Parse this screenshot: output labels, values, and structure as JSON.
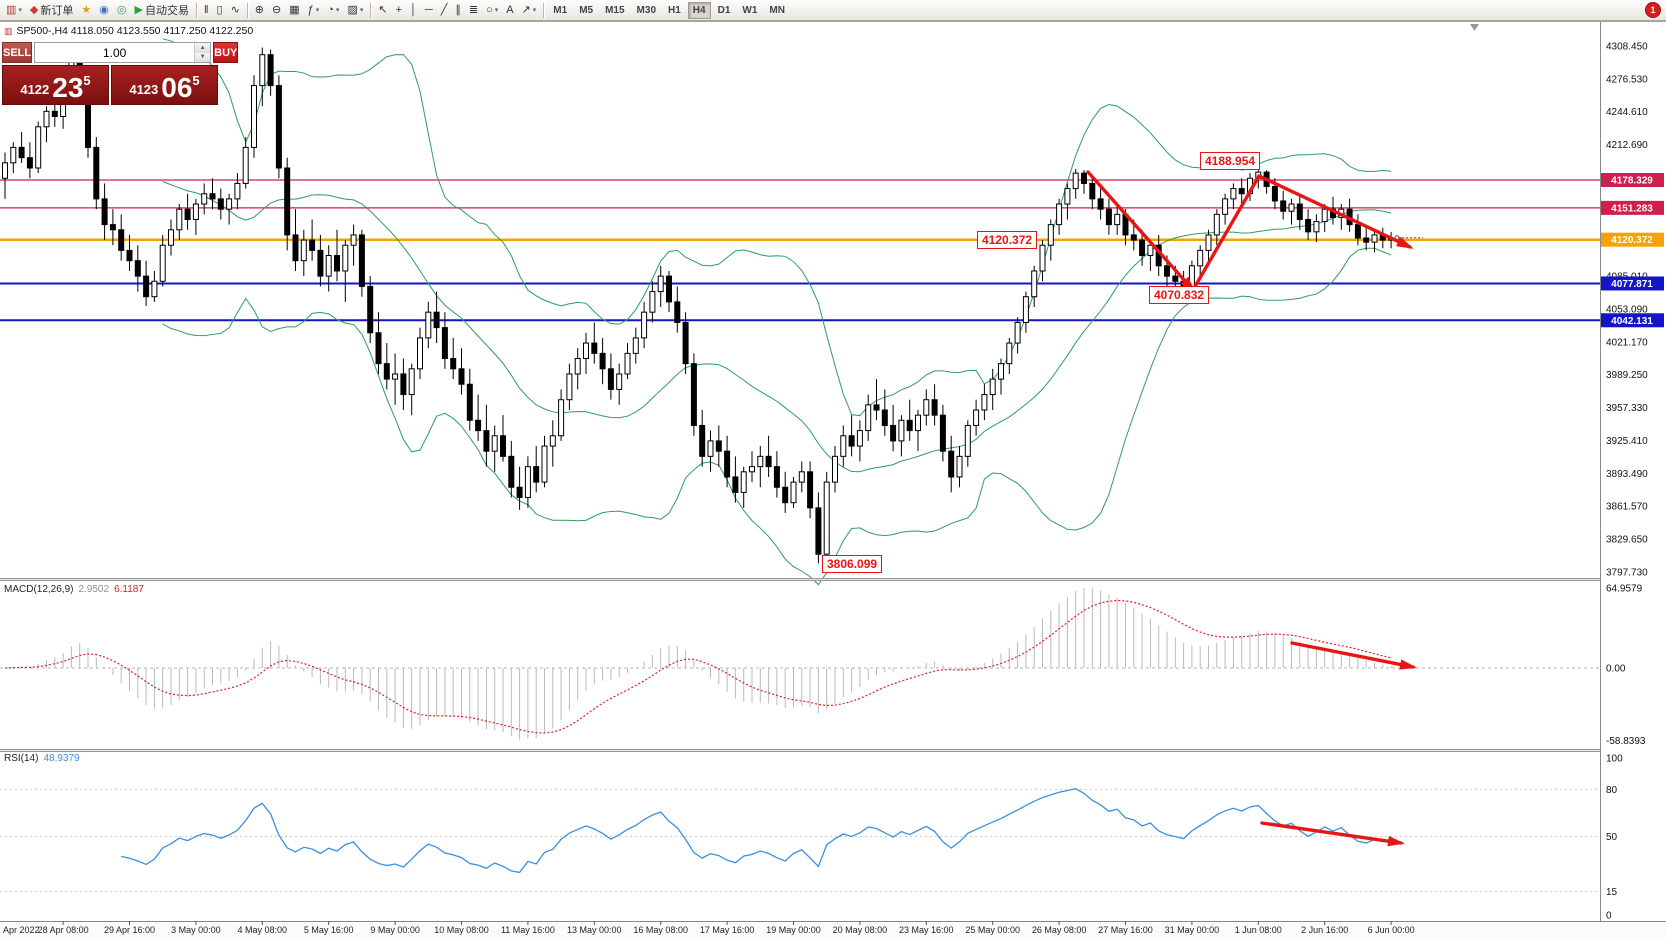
{
  "toolbar": {
    "buttons": [
      {
        "name": "new-chart-button",
        "glyph": "▥",
        "color": "#b0342c",
        "dropdown": true
      },
      {
        "name": "new-order-button",
        "glyph": "◆",
        "color": "#cf3a3a",
        "label": "新订单"
      },
      {
        "name": "favorites-button",
        "glyph": "★",
        "color": "#d9a21b"
      },
      {
        "name": "market-watch-button",
        "glyph": "◉",
        "color": "#3f6fbf"
      },
      {
        "name": "navigator-button",
        "glyph": "◎",
        "color": "#3f9e53"
      },
      {
        "name": "autotrading-button",
        "glyph": "▶",
        "color": "#2fa33a",
        "label": "自动交易"
      },
      {
        "sep": true
      },
      {
        "name": "bar-chart-button",
        "glyph": "‖"
      },
      {
        "name": "candlestick-chart-button",
        "glyph": "▯"
      },
      {
        "name": "line-chart-button",
        "glyph": "∿"
      },
      {
        "sep": true
      },
      {
        "name": "zoom-in-button",
        "glyph": "⊕"
      },
      {
        "name": "zoom-out-button",
        "glyph": "⊖"
      },
      {
        "name": "tile-windows-button",
        "glyph": "▦"
      },
      {
        "name": "indicators-button",
        "glyph": "ƒ",
        "dropdown": true
      },
      {
        "name": "periods-button",
        "glyph": "◔",
        "dropdown": true
      },
      {
        "name": "templates-button",
        "glyph": "▨",
        "dropdown": true
      },
      {
        "sep": true
      },
      {
        "name": "cursor-button",
        "glyph": "↖"
      },
      {
        "name": "crosshair-button",
        "glyph": "+"
      },
      {
        "name": "vertical-line-button",
        "glyph": "│"
      },
      {
        "name": "horizontal-line-button",
        "glyph": "─"
      },
      {
        "name": "trendline-button",
        "glyph": "╱"
      },
      {
        "name": "channel-button",
        "glyph": "∥"
      },
      {
        "name": "fibonacci-button",
        "glyph": "≣"
      },
      {
        "name": "shapes-button",
        "glyph": "○",
        "dropdown": true
      },
      {
        "name": "text-button",
        "glyph": "A"
      },
      {
        "name": "arrow-tools-button",
        "glyph": "↗",
        "dropdown": true
      },
      {
        "sep": true
      }
    ],
    "timeframes": [
      "M1",
      "M5",
      "M15",
      "M30",
      "H1",
      "H4",
      "D1",
      "W1",
      "MN"
    ],
    "active_timeframe": "H4",
    "notification_badge": "1"
  },
  "trade_panel": {
    "sell_label": "SELL",
    "buy_label": "BUY",
    "volume": "1.00",
    "sell_base": "4122",
    "sell_pips": "23",
    "sell_sup": "5",
    "buy_base": "4123",
    "buy_pips": "06",
    "buy_sup": "5"
  },
  "macd_panel": {
    "name": "MACD(12,26,9)",
    "value_main": "2.9502",
    "value_signal": "6.1187"
  },
  "rsi_panel": {
    "name": "RSI(14)",
    "value": "48.9379"
  },
  "chart_data": {
    "type": "candlestick",
    "symbol": "SP500-",
    "timeframe": "H4",
    "header_line": "SP500-,H4  4118.050 4123.550 4117.250 4122.250",
    "ohlc_current": {
      "open": 4118.05,
      "high": 4123.55,
      "low": 4117.25,
      "close": 4122.25
    },
    "ylim": [
      3797.73,
      4308.45
    ],
    "price_scale_labels": [
      "4308.450",
      "4276.530",
      "4244.610",
      "4212.690",
      "4180.770",
      "4148.850",
      "4116.930",
      "4085.010",
      "4053.090",
      "4021.170",
      "3989.250",
      "3957.330",
      "3925.410",
      "3893.490",
      "3861.570",
      "3829.650",
      "3797.730"
    ],
    "x_labels": [
      "Apr 2022",
      "28 Apr 08:00",
      "29 Apr 16:00",
      "3 May 00:00",
      "4 May 08:00",
      "5 May 16:00",
      "9 May 00:00",
      "10 May 08:00",
      "11 May 16:00",
      "13 May 00:00",
      "16 May 08:00",
      "17 May 16:00",
      "19 May 00:00",
      "20 May 08:00",
      "23 May 16:00",
      "25 May 00:00",
      "26 May 08:00",
      "27 May 16:00",
      "31 May 00:00",
      "1 Jun 08:00",
      "2 Jun 16:00",
      "6 Jun 00:00"
    ],
    "hlines": [
      {
        "label": "4178.329",
        "price": 4178.329,
        "color": "#cf1f4e",
        "width": 1.2
      },
      {
        "label": "4151.283",
        "price": 4151.283,
        "color": "#cf1f4e",
        "width": 1.2
      },
      {
        "label": "4120.372",
        "price": 4120.372,
        "color": "#f5a300",
        "width": 2.5
      },
      {
        "label": "4077.871",
        "price": 4077.871,
        "color": "#1414c8",
        "width": 2
      },
      {
        "label": "4042.131",
        "price": 4042.131,
        "color": "#1414c8",
        "width": 2
      }
    ],
    "annotations": [
      {
        "text": "4188.954"
      },
      {
        "text": "4120.372"
      },
      {
        "text": "4070.832"
      },
      {
        "text": "3806.099"
      }
    ],
    "indicators": {
      "bollinger": {
        "period": 20,
        "deviation": 2,
        "color": "#2e9e5b"
      },
      "macd": {
        "fast": 12,
        "slow": 26,
        "signal": 9,
        "current_main": 2.9502,
        "current_signal": 6.1187,
        "scale_labels": [
          "64.9579",
          "0.00",
          "-58.8393"
        ],
        "scale_values": [
          64.9579,
          0,
          -58.8393
        ]
      },
      "rsi": {
        "period": 14,
        "current": 48.9379,
        "scale_labels": [
          "100",
          "80",
          "50",
          "15",
          "0"
        ],
        "scale_values": [
          100,
          80,
          50,
          15,
          0
        ],
        "levels": [
          80,
          50,
          15
        ]
      }
    },
    "candles_ohlc": [
      [
        4180,
        4205,
        4160,
        4195
      ],
      [
        4195,
        4215,
        4185,
        4210
      ],
      [
        4210,
        4225,
        4195,
        4200
      ],
      [
        4200,
        4215,
        4180,
        4190
      ],
      [
        4190,
        4235,
        4185,
        4230
      ],
      [
        4230,
        4250,
        4215,
        4245
      ],
      [
        4245,
        4262,
        4230,
        4240
      ],
      [
        4240,
        4270,
        4228,
        4265
      ],
      [
        4265,
        4308,
        4255,
        4295
      ],
      [
        4295,
        4307,
        4270,
        4280
      ],
      [
        4280,
        4285,
        4200,
        4210
      ],
      [
        4210,
        4220,
        4150,
        4160
      ],
      [
        4160,
        4175,
        4120,
        4135
      ],
      [
        4135,
        4150,
        4115,
        4130
      ],
      [
        4130,
        4145,
        4100,
        4110
      ],
      [
        4110,
        4125,
        4090,
        4100
      ],
      [
        4100,
        4115,
        4070,
        4085
      ],
      [
        4085,
        4100,
        4056,
        4065
      ],
      [
        4065,
        4090,
        4060,
        4080
      ],
      [
        4080,
        4125,
        4075,
        4115
      ],
      [
        4115,
        4140,
        4105,
        4130
      ],
      [
        4130,
        4155,
        4120,
        4150
      ],
      [
        4150,
        4165,
        4130,
        4140
      ],
      [
        4140,
        4160,
        4125,
        4155
      ],
      [
        4155,
        4175,
        4145,
        4165
      ],
      [
        4165,
        4180,
        4150,
        4160
      ],
      [
        4160,
        4170,
        4140,
        4150
      ],
      [
        4150,
        4165,
        4135,
        4160
      ],
      [
        4160,
        4185,
        4150,
        4175
      ],
      [
        4175,
        4220,
        4170,
        4210
      ],
      [
        4210,
        4280,
        4200,
        4270
      ],
      [
        4270,
        4307,
        4250,
        4300
      ],
      [
        4300,
        4305,
        4260,
        4270
      ],
      [
        4270,
        4280,
        4180,
        4190
      ],
      [
        4190,
        4200,
        4110,
        4125
      ],
      [
        4125,
        4150,
        4090,
        4100
      ],
      [
        4100,
        4130,
        4085,
        4120
      ],
      [
        4120,
        4140,
        4100,
        4110
      ],
      [
        4110,
        4125,
        4075,
        4085
      ],
      [
        4085,
        4115,
        4070,
        4105
      ],
      [
        4105,
        4130,
        4080,
        4090
      ],
      [
        4090,
        4120,
        4060,
        4115
      ],
      [
        4115,
        4135,
        4095,
        4125
      ],
      [
        4125,
        4130,
        4065,
        4075
      ],
      [
        4075,
        4085,
        4020,
        4030
      ],
      [
        4030,
        4050,
        3990,
        4000
      ],
      [
        4000,
        4020,
        3975,
        3985
      ],
      [
        3985,
        4010,
        3960,
        3990
      ],
      [
        3990,
        4005,
        3955,
        3970
      ],
      [
        3970,
        4000,
        3950,
        3995
      ],
      [
        3995,
        4035,
        3985,
        4025
      ],
      [
        4025,
        4060,
        4015,
        4050
      ],
      [
        4050,
        4070,
        4020,
        4035
      ],
      [
        4035,
        4050,
        3995,
        4005
      ],
      [
        4005,
        4025,
        3985,
        3995
      ],
      [
        3995,
        4015,
        3970,
        3980
      ],
      [
        3980,
        3995,
        3935,
        3945
      ],
      [
        3945,
        3970,
        3925,
        3935
      ],
      [
        3935,
        3960,
        3900,
        3915
      ],
      [
        3915,
        3940,
        3895,
        3930
      ],
      [
        3930,
        3950,
        3905,
        3910
      ],
      [
        3910,
        3925,
        3870,
        3880
      ],
      [
        3880,
        3900,
        3858,
        3870
      ],
      [
        3870,
        3910,
        3860,
        3900
      ],
      [
        3900,
        3920,
        3875,
        3885
      ],
      [
        3885,
        3930,
        3880,
        3920
      ],
      [
        3920,
        3945,
        3900,
        3930
      ],
      [
        3930,
        3975,
        3925,
        3965
      ],
      [
        3965,
        4000,
        3955,
        3990
      ],
      [
        3990,
        4015,
        3975,
        4005
      ],
      [
        4005,
        4030,
        3990,
        4020
      ],
      [
        4020,
        4040,
        4000,
        4010
      ],
      [
        4010,
        4025,
        3980,
        3995
      ],
      [
        3995,
        4010,
        3965,
        3975
      ],
      [
        3975,
        4000,
        3960,
        3990
      ],
      [
        3990,
        4020,
        3985,
        4010
      ],
      [
        4010,
        4035,
        4000,
        4025
      ],
      [
        4025,
        4060,
        4015,
        4050
      ],
      [
        4050,
        4080,
        4040,
        4070
      ],
      [
        4070,
        4095,
        4055,
        4085
      ],
      [
        4085,
        4090,
        4050,
        4060
      ],
      [
        4060,
        4075,
        4030,
        4040
      ],
      [
        4040,
        4050,
        3990,
        4000
      ],
      [
        4000,
        4010,
        3930,
        3940
      ],
      [
        3940,
        3955,
        3900,
        3910
      ],
      [
        3910,
        3935,
        3895,
        3925
      ],
      [
        3925,
        3940,
        3900,
        3915
      ],
      [
        3915,
        3930,
        3880,
        3890
      ],
      [
        3890,
        3910,
        3865,
        3875
      ],
      [
        3875,
        3900,
        3860,
        3895
      ],
      [
        3895,
        3915,
        3885,
        3900
      ],
      [
        3900,
        3920,
        3880,
        3910
      ],
      [
        3910,
        3930,
        3890,
        3900
      ],
      [
        3900,
        3915,
        3870,
        3880
      ],
      [
        3880,
        3895,
        3855,
        3865
      ],
      [
        3865,
        3890,
        3860,
        3885
      ],
      [
        3885,
        3905,
        3875,
        3895
      ],
      [
        3895,
        3905,
        3850,
        3860
      ],
      [
        3860,
        3875,
        3806,
        3815
      ],
      [
        3815,
        3895,
        3810,
        3885
      ],
      [
        3885,
        3920,
        3875,
        3910
      ],
      [
        3910,
        3940,
        3900,
        3930
      ],
      [
        3930,
        3950,
        3910,
        3920
      ],
      [
        3920,
        3945,
        3905,
        3935
      ],
      [
        3935,
        3970,
        3925,
        3960
      ],
      [
        3960,
        3985,
        3945,
        3955
      ],
      [
        3955,
        3975,
        3930,
        3940
      ],
      [
        3940,
        3960,
        3915,
        3925
      ],
      [
        3925,
        3950,
        3910,
        3945
      ],
      [
        3945,
        3965,
        3925,
        3935
      ],
      [
        3935,
        3955,
        3915,
        3950
      ],
      [
        3950,
        3975,
        3940,
        3965
      ],
      [
        3965,
        3980,
        3940,
        3950
      ],
      [
        3950,
        3960,
        3905,
        3915
      ],
      [
        3915,
        3930,
        3875,
        3890
      ],
      [
        3890,
        3920,
        3880,
        3910
      ],
      [
        3910,
        3945,
        3900,
        3940
      ],
      [
        3940,
        3965,
        3930,
        3955
      ],
      [
        3955,
        3980,
        3945,
        3970
      ],
      [
        3970,
        3995,
        3955,
        3985
      ],
      [
        3985,
        4005,
        3970,
        4000
      ],
      [
        4000,
        4025,
        3990,
        4020
      ],
      [
        4020,
        4045,
        4010,
        4040
      ],
      [
        4040,
        4070,
        4030,
        4065
      ],
      [
        4065,
        4095,
        4055,
        4090
      ],
      [
        4090,
        4120,
        4080,
        4115
      ],
      [
        4115,
        4140,
        4100,
        4135
      ],
      [
        4135,
        4160,
        4125,
        4155
      ],
      [
        4155,
        4175,
        4140,
        4170
      ],
      [
        4170,
        4189,
        4160,
        4185
      ],
      [
        4185,
        4188,
        4165,
        4175
      ],
      [
        4175,
        4182,
        4150,
        4160
      ],
      [
        4160,
        4170,
        4140,
        4150
      ],
      [
        4150,
        4160,
        4125,
        4135
      ],
      [
        4135,
        4155,
        4125,
        4145
      ],
      [
        4145,
        4150,
        4115,
        4125
      ],
      [
        4125,
        4140,
        4110,
        4120
      ],
      [
        4120,
        4130,
        4095,
        4105
      ],
      [
        4105,
        4120,
        4090,
        4115
      ],
      [
        4115,
        4125,
        4085,
        4095
      ],
      [
        4095,
        4105,
        4075,
        4085
      ],
      [
        4085,
        4095,
        4071,
        4080
      ],
      [
        4080,
        4090,
        4070,
        4075
      ],
      [
        4075,
        4100,
        4072,
        4095
      ],
      [
        4095,
        4115,
        4085,
        4110
      ],
      [
        4110,
        4130,
        4100,
        4125
      ],
      [
        4125,
        4150,
        4115,
        4145
      ],
      [
        4145,
        4165,
        4135,
        4160
      ],
      [
        4160,
        4175,
        4150,
        4170
      ],
      [
        4170,
        4180,
        4155,
        4165
      ],
      [
        4165,
        4185,
        4158,
        4180
      ],
      [
        4180,
        4189,
        4170,
        4186
      ],
      [
        4186,
        4188,
        4165,
        4172
      ],
      [
        4172,
        4180,
        4150,
        4158
      ],
      [
        4158,
        4168,
        4140,
        4148
      ],
      [
        4148,
        4160,
        4135,
        4155
      ],
      [
        4155,
        4165,
        4130,
        4140
      ],
      [
        4140,
        4150,
        4120,
        4128
      ],
      [
        4128,
        4145,
        4118,
        4138
      ],
      [
        4138,
        4155,
        4128,
        4150
      ],
      [
        4150,
        4162,
        4135,
        4142
      ],
      [
        4142,
        4155,
        4130,
        4150
      ],
      [
        4150,
        4160,
        4128,
        4135
      ],
      [
        4135,
        4145,
        4115,
        4122
      ],
      [
        4122,
        4135,
        4110,
        4118
      ],
      [
        4118,
        4130,
        4108,
        4125
      ],
      [
        4125,
        4132,
        4112,
        4120
      ],
      [
        4120,
        4128,
        4112,
        4122
      ]
    ]
  }
}
